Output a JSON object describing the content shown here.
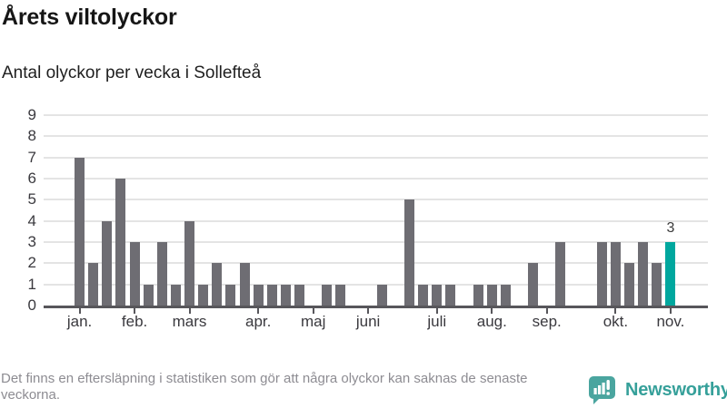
{
  "header": {
    "title": "Årets viltolyckor",
    "subtitle": "Antal olyckor per vecka i Sollefteå"
  },
  "footer": {
    "note": "Det finns en eftersläpning i statistiken som gör att några olyckor kan saknas de senaste veckorna.",
    "brand": "Newsworthy",
    "logo_icon": "newsworthy-badge-icon"
  },
  "colors": {
    "bar": "#6e6d73",
    "highlight": "#00a79e",
    "gridline": "#e4e4e4",
    "axis": "#57565b",
    "brand_teal": "#4aa59f"
  },
  "chart_data": {
    "type": "bar",
    "title": "Årets viltolyckor",
    "subtitle": "Antal olyckor per vecka i Sollefteå",
    "x_unit": "vecka (week of year)",
    "n_weeks": 44,
    "values": [
      7,
      2,
      4,
      6,
      3,
      1,
      3,
      1,
      4,
      1,
      2,
      1,
      2,
      1,
      1,
      1,
      1,
      0,
      1,
      1,
      0,
      0,
      1,
      0,
      5,
      1,
      1,
      1,
      0,
      1,
      1,
      1,
      0,
      2,
      0,
      3,
      0,
      0,
      3,
      3,
      2,
      3,
      2,
      3
    ],
    "highlight_index": 43,
    "highlight_value": 3,
    "highlight_label": "3",
    "bar_color": "#6e6d73",
    "highlight_color": "#00a79e",
    "ylabel": "",
    "xlabel": "",
    "ylim": [
      0,
      9
    ],
    "yticks": [
      0,
      1,
      2,
      3,
      4,
      5,
      6,
      7,
      8,
      9
    ],
    "xticks": [
      {
        "week": 1,
        "label": "jan."
      },
      {
        "week": 5,
        "label": "feb."
      },
      {
        "week": 9,
        "label": "mars"
      },
      {
        "week": 14,
        "label": "apr."
      },
      {
        "week": 18,
        "label": "maj"
      },
      {
        "week": 22,
        "label": "juni"
      },
      {
        "week": 27,
        "label": "juli"
      },
      {
        "week": 31,
        "label": "aug."
      },
      {
        "week": 35,
        "label": "sep."
      },
      {
        "week": 40,
        "label": "okt."
      },
      {
        "week": 44,
        "label": "nov."
      }
    ],
    "grid": "horizontal",
    "legend": "none"
  }
}
